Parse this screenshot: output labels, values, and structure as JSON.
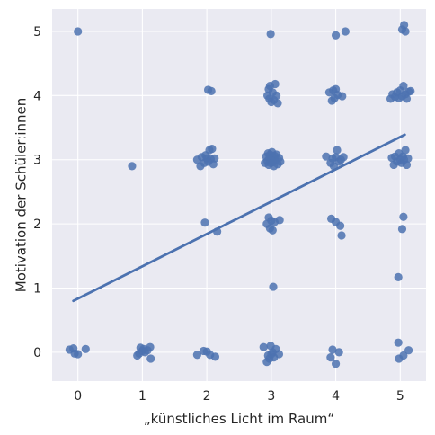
{
  "chart_data": {
    "type": "scatter",
    "title": "",
    "xlabel": "„künstliches Licht im Raum“",
    "ylabel": "Motivation der Schüler:innen",
    "xlim": [
      -0.4,
      5.4
    ],
    "ylim": [
      -0.45,
      5.35
    ],
    "xticks": [
      "0",
      "1",
      "2",
      "3",
      "4",
      "5"
    ],
    "yticks": [
      "0",
      "1",
      "2",
      "3",
      "4",
      "5"
    ],
    "grid": true,
    "colors": {
      "background": "#eaeaf2",
      "grid": "#ffffff",
      "points": "#4c72b0",
      "line": "#4c72b0",
      "text": "#262626"
    },
    "regression": {
      "x": [
        -0.07,
        5.07
      ],
      "y": [
        0.8,
        3.39
      ]
    },
    "points": [
      {
        "x": -0.13,
        "y": 0.04
      },
      {
        "x": -0.07,
        "y": 0.06
      },
      {
        "x": -0.05,
        "y": -0.02
      },
      {
        "x": 0.0,
        "y": -0.03
      },
      {
        "x": 0.12,
        "y": 0.05
      },
      {
        "x": 0.0,
        "y": 5.0
      },
      {
        "x": 0.84,
        "y": 2.9
      },
      {
        "x": 0.92,
        "y": -0.05
      },
      {
        "x": 0.95,
        "y": -0.02
      },
      {
        "x": 0.97,
        "y": 0.07
      },
      {
        "x": 1.0,
        "y": 0.02
      },
      {
        "x": 1.02,
        "y": 0.05
      },
      {
        "x": 1.04,
        "y": 0.0
      },
      {
        "x": 1.08,
        "y": 0.03
      },
      {
        "x": 1.12,
        "y": 0.08
      },
      {
        "x": 1.13,
        "y": -0.1
      },
      {
        "x": 1.85,
        "y": -0.04
      },
      {
        "x": 1.95,
        "y": 0.02
      },
      {
        "x": 2.0,
        "y": 0.01
      },
      {
        "x": 2.05,
        "y": -0.04
      },
      {
        "x": 2.13,
        "y": -0.07
      },
      {
        "x": 1.85,
        "y": 3.0
      },
      {
        "x": 1.9,
        "y": 2.9
      },
      {
        "x": 1.92,
        "y": 3.04
      },
      {
        "x": 1.96,
        "y": 2.95
      },
      {
        "x": 1.98,
        "y": 3.07
      },
      {
        "x": 2.0,
        "y": 3.02
      },
      {
        "x": 2.02,
        "y": 2.97
      },
      {
        "x": 2.04,
        "y": 3.15
      },
      {
        "x": 2.06,
        "y": 3.01
      },
      {
        "x": 2.08,
        "y": 3.17
      },
      {
        "x": 2.1,
        "y": 2.93
      },
      {
        "x": 2.12,
        "y": 3.02
      },
      {
        "x": 2.02,
        "y": 4.09
      },
      {
        "x": 2.07,
        "y": 4.07
      },
      {
        "x": 1.97,
        "y": 2.02
      },
      {
        "x": 2.16,
        "y": 1.88
      },
      {
        "x": 2.88,
        "y": 0.08
      },
      {
        "x": 2.93,
        "y": -0.15
      },
      {
        "x": 2.95,
        "y": -0.05
      },
      {
        "x": 2.97,
        "y": -0.1
      },
      {
        "x": 2.99,
        "y": 0.1
      },
      {
        "x": 3.0,
        "y": -0.03
      },
      {
        "x": 3.02,
        "y": 0.0
      },
      {
        "x": 3.04,
        "y": -0.08
      },
      {
        "x": 3.07,
        "y": 0.05
      },
      {
        "x": 3.12,
        "y": -0.03
      },
      {
        "x": 2.9,
        "y": 2.95
      },
      {
        "x": 2.92,
        "y": 3.05
      },
      {
        "x": 2.94,
        "y": 2.98
      },
      {
        "x": 2.95,
        "y": 3.1
      },
      {
        "x": 2.96,
        "y": 2.92
      },
      {
        "x": 2.97,
        "y": 3.02
      },
      {
        "x": 2.98,
        "y": 3.08
      },
      {
        "x": 2.99,
        "y": 2.95
      },
      {
        "x": 3.0,
        "y": 3.0
      },
      {
        "x": 3.01,
        "y": 3.12
      },
      {
        "x": 3.02,
        "y": 2.96
      },
      {
        "x": 3.03,
        "y": 3.04
      },
      {
        "x": 3.04,
        "y": 2.9
      },
      {
        "x": 3.05,
        "y": 3.06
      },
      {
        "x": 3.06,
        "y": 2.99
      },
      {
        "x": 3.08,
        "y": 3.08
      },
      {
        "x": 3.1,
        "y": 2.93
      },
      {
        "x": 3.12,
        "y": 3.03
      },
      {
        "x": 3.14,
        "y": 2.97
      },
      {
        "x": 2.94,
        "y": 4.0
      },
      {
        "x": 2.96,
        "y": 4.1
      },
      {
        "x": 2.97,
        "y": 3.95
      },
      {
        "x": 2.98,
        "y": 4.15
      },
      {
        "x": 3.0,
        "y": 3.9
      },
      {
        "x": 3.02,
        "y": 4.05
      },
      {
        "x": 3.04,
        "y": 3.93
      },
      {
        "x": 3.06,
        "y": 4.18
      },
      {
        "x": 3.08,
        "y": 4.0
      },
      {
        "x": 3.1,
        "y": 3.88
      },
      {
        "x": 2.93,
        "y": 2.0
      },
      {
        "x": 2.96,
        "y": 2.1
      },
      {
        "x": 2.98,
        "y": 1.93
      },
      {
        "x": 3.0,
        "y": 2.05
      },
      {
        "x": 3.02,
        "y": 1.9
      },
      {
        "x": 3.05,
        "y": 2.03
      },
      {
        "x": 3.13,
        "y": 2.06
      },
      {
        "x": 3.03,
        "y": 1.02
      },
      {
        "x": 2.99,
        "y": 4.96
      },
      {
        "x": 3.92,
        "y": -0.08
      },
      {
        "x": 3.95,
        "y": 0.04
      },
      {
        "x": 4.0,
        "y": -0.18
      },
      {
        "x": 4.05,
        "y": 0.0
      },
      {
        "x": 3.85,
        "y": 3.05
      },
      {
        "x": 3.92,
        "y": 2.95
      },
      {
        "x": 3.95,
        "y": 3.02
      },
      {
        "x": 3.97,
        "y": 2.9
      },
      {
        "x": 4.0,
        "y": 3.04
      },
      {
        "x": 4.02,
        "y": 3.15
      },
      {
        "x": 4.05,
        "y": 2.97
      },
      {
        "x": 4.08,
        "y": 3.0
      },
      {
        "x": 4.12,
        "y": 3.04
      },
      {
        "x": 3.9,
        "y": 4.05
      },
      {
        "x": 3.94,
        "y": 3.92
      },
      {
        "x": 3.96,
        "y": 4.08
      },
      {
        "x": 3.98,
        "y": 3.96
      },
      {
        "x": 4.0,
        "y": 4.1
      },
      {
        "x": 4.03,
        "y": 4.01
      },
      {
        "x": 4.1,
        "y": 3.99
      },
      {
        "x": 3.93,
        "y": 2.08
      },
      {
        "x": 4.0,
        "y": 2.03
      },
      {
        "x": 4.07,
        "y": 1.97
      },
      {
        "x": 4.09,
        "y": 1.82
      },
      {
        "x": 4.0,
        "y": 4.94
      },
      {
        "x": 4.15,
        "y": 5.0
      },
      {
        "x": 4.97,
        "y": 0.15
      },
      {
        "x": 4.98,
        "y": -0.1
      },
      {
        "x": 5.05,
        "y": -0.05
      },
      {
        "x": 5.13,
        "y": 0.03
      },
      {
        "x": 4.87,
        "y": 3.03
      },
      {
        "x": 4.9,
        "y": 2.92
      },
      {
        "x": 4.92,
        "y": 3.05
      },
      {
        "x": 4.95,
        "y": 2.97
      },
      {
        "x": 4.98,
        "y": 3.1
      },
      {
        "x": 5.0,
        "y": 3.0
      },
      {
        "x": 5.02,
        "y": 2.95
      },
      {
        "x": 5.04,
        "y": 3.05
      },
      {
        "x": 5.06,
        "y": 3.0
      },
      {
        "x": 5.08,
        "y": 3.15
      },
      {
        "x": 5.1,
        "y": 2.92
      },
      {
        "x": 5.12,
        "y": 3.02
      },
      {
        "x": 4.85,
        "y": 3.95
      },
      {
        "x": 4.88,
        "y": 4.02
      },
      {
        "x": 4.92,
        "y": 3.98
      },
      {
        "x": 4.95,
        "y": 4.05
      },
      {
        "x": 4.98,
        "y": 3.96
      },
      {
        "x": 5.0,
        "y": 4.08
      },
      {
        "x": 5.03,
        "y": 3.99
      },
      {
        "x": 5.05,
        "y": 4.15
      },
      {
        "x": 5.08,
        "y": 4.02
      },
      {
        "x": 5.1,
        "y": 3.95
      },
      {
        "x": 5.13,
        "y": 4.06
      },
      {
        "x": 5.16,
        "y": 4.07
      },
      {
        "x": 5.05,
        "y": 2.11
      },
      {
        "x": 5.03,
        "y": 1.92
      },
      {
        "x": 4.97,
        "y": 1.17
      },
      {
        "x": 5.03,
        "y": 5.03
      },
      {
        "x": 5.06,
        "y": 5.1
      },
      {
        "x": 5.08,
        "y": 5.0
      }
    ]
  }
}
